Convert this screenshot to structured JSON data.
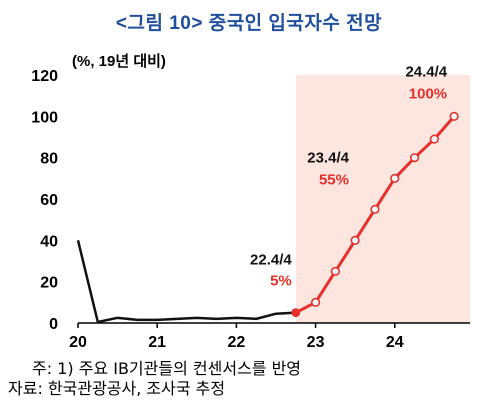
{
  "title": "<그림 10> 중국인 입국자수 전망",
  "chart_data": {
    "type": "line",
    "unit_label": "(%, 19년 대비)",
    "ylim": [
      0,
      120
    ],
    "yticks": [
      0,
      20,
      40,
      60,
      80,
      100,
      120
    ],
    "xlim": [
      2020,
      2024.95
    ],
    "xticks": [
      2020,
      2021,
      2022,
      2023,
      2024
    ],
    "xtick_labels": [
      "20",
      "21",
      "22",
      "23",
      "24"
    ],
    "forecast_shading_start": "22.4/4",
    "colors": {
      "actual": "#111111",
      "forecast": "#e8302a",
      "shade": "#fde6e0",
      "annotation_value": "#e8302a"
    },
    "series": [
      {
        "x": [
          "20.1/4",
          "20.2/4",
          "20.3/4",
          "20.4/4",
          "21.1/4",
          "21.2/4",
          "21.3/4",
          "21.4/4",
          "22.1/4",
          "22.2/4",
          "22.3/4",
          "22.4/4"
        ],
        "values": [
          40,
          0.5,
          2.5,
          1.5,
          1.5,
          2,
          2.5,
          2,
          2.5,
          2,
          4.5,
          5
        ]
      },
      {
        "x": [
          "22.4/4",
          "23.1/4",
          "23.2/4",
          "23.3/4",
          "23.4/4",
          "24.1/4",
          "24.2/4",
          "24.3/4",
          "24.4/4"
        ],
        "values": [
          5,
          10,
          25,
          40,
          55,
          70,
          80,
          89,
          100
        ]
      }
    ],
    "annotations": [
      {
        "label": "22.4/4",
        "value_text": "5%"
      },
      {
        "label": "23.4/4",
        "value_text": "55%"
      },
      {
        "label": "24.4/4",
        "value_text": "100%"
      }
    ]
  },
  "footnotes": {
    "note1": "주: 1) 주요 IB기관들의 컨센서스를 반영",
    "note2": "자료: 한국관광공사, 조사국 추정"
  }
}
